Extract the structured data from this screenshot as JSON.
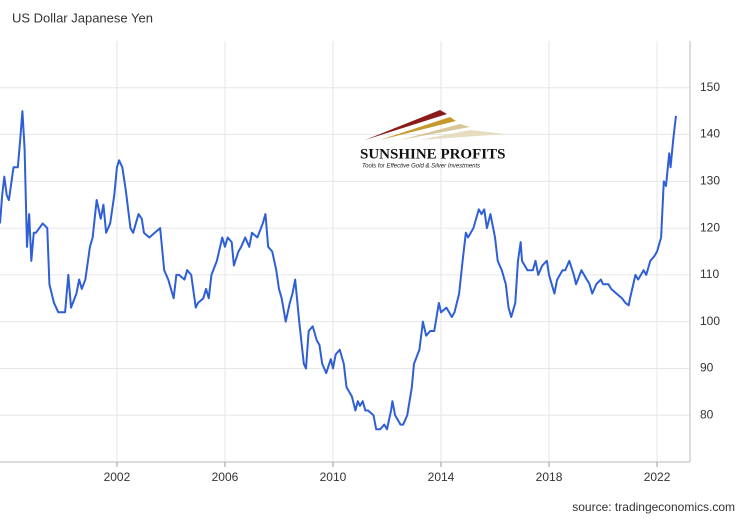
{
  "title": "US Dollar Japanese Yen",
  "logo": {
    "name": "SUNSHINE PROFITS",
    "tagline": "Tools for Effective Gold & Silver Investments"
  },
  "source": "source: tradingeconomics.com",
  "chart_data": {
    "type": "line",
    "x": [
      1997.67,
      1997.75,
      1997.83,
      1997.92,
      1998.0,
      1998.17,
      1998.33,
      1998.42,
      1998.5,
      1998.58,
      1998.67,
      1998.75,
      1998.83,
      1998.92,
      1999.0,
      1999.25,
      1999.42,
      1999.5,
      1999.67,
      1999.83,
      1999.92,
      2000.08,
      2000.2,
      2000.3,
      2000.5,
      2000.6,
      2000.7,
      2000.83,
      2001.0,
      2001.1,
      2001.25,
      2001.4,
      2001.5,
      2001.6,
      2001.75,
      2001.9,
      2002.0,
      2002.08,
      2002.2,
      2002.33,
      2002.5,
      2002.6,
      2002.7,
      2002.8,
      2002.92,
      2003.0,
      2003.2,
      2003.4,
      2003.6,
      2003.75,
      2003.9,
      2004.0,
      2004.1,
      2004.2,
      2004.3,
      2004.5,
      2004.6,
      2004.75,
      2004.92,
      2005.0,
      2005.2,
      2005.3,
      2005.4,
      2005.5,
      2005.7,
      2005.9,
      2006.0,
      2006.1,
      2006.25,
      2006.33,
      2006.5,
      2006.6,
      2006.75,
      2006.9,
      2007.0,
      2007.2,
      2007.4,
      2007.5,
      2007.6,
      2007.75,
      2007.9,
      2008.0,
      2008.1,
      2008.25,
      2008.4,
      2008.5,
      2008.6,
      2008.75,
      2008.92,
      2009.0,
      2009.1,
      2009.25,
      2009.4,
      2009.5,
      2009.6,
      2009.75,
      2009.92,
      2010.0,
      2010.1,
      2010.25,
      2010.4,
      2010.5,
      2010.7,
      2010.83,
      2010.92,
      2011.0,
      2011.1,
      2011.2,
      2011.3,
      2011.5,
      2011.6,
      2011.75,
      2011.9,
      2012.0,
      2012.15,
      2012.2,
      2012.3,
      2012.4,
      2012.5,
      2012.6,
      2012.75,
      2012.92,
      2013.0,
      2013.2,
      2013.33,
      2013.45,
      2013.6,
      2013.75,
      2013.92,
      2014.0,
      2014.2,
      2014.4,
      2014.5,
      2014.67,
      2014.8,
      2014.92,
      2015.0,
      2015.2,
      2015.4,
      2015.5,
      2015.6,
      2015.7,
      2015.83,
      2016.0,
      2016.1,
      2016.25,
      2016.4,
      2016.5,
      2016.6,
      2016.75,
      2016.85,
      2016.95,
      2017.0,
      2017.2,
      2017.4,
      2017.5,
      2017.6,
      2017.75,
      2017.92,
      2018.0,
      2018.2,
      2018.3,
      2018.5,
      2018.6,
      2018.75,
      2018.92,
      2019.0,
      2019.2,
      2019.4,
      2019.5,
      2019.6,
      2019.75,
      2019.92,
      2020.0,
      2020.2,
      2020.3,
      2020.5,
      2020.7,
      2020.83,
      2020.95,
      2021.0,
      2021.2,
      2021.3,
      2021.5,
      2021.6,
      2021.75,
      2021.9,
      2022.0,
      2022.15,
      2022.25,
      2022.33,
      2022.45,
      2022.5,
      2022.6,
      2022.7
    ],
    "series": [
      {
        "name": "USDJPY",
        "color": "#2f5fd6",
        "values": [
          121,
          127,
          131,
          127,
          126,
          133,
          133,
          139,
          145,
          137,
          116,
          123,
          113,
          119,
          119,
          121,
          120,
          108,
          104,
          102,
          102,
          102,
          110,
          103,
          106,
          109,
          107,
          109,
          116,
          118,
          126,
          122,
          125,
          119,
          121,
          127,
          133,
          134.5,
          133,
          128,
          120,
          119,
          121,
          123,
          122,
          119,
          118,
          119,
          120,
          111,
          109,
          107,
          105,
          110,
          110,
          109,
          111,
          110,
          103,
          104,
          105,
          107,
          105,
          110,
          113,
          118,
          116,
          118,
          117,
          112,
          115,
          116,
          118,
          116,
          119,
          118,
          121,
          123,
          116,
          115,
          111,
          107,
          105,
          100,
          104,
          106,
          109,
          100,
          91,
          90,
          98,
          99,
          96,
          95,
          91,
          89,
          92,
          90,
          93,
          94,
          91,
          86,
          84,
          81,
          83,
          82,
          83,
          81,
          81,
          80,
          77,
          77,
          78,
          77,
          81,
          83,
          80,
          79,
          78,
          78,
          80,
          86,
          91,
          94,
          100,
          97,
          98,
          98,
          104,
          102,
          103,
          101,
          102,
          106,
          113,
          119,
          118,
          120,
          124,
          123,
          124,
          120,
          123,
          118,
          113,
          111,
          108,
          103,
          101,
          104,
          113,
          117,
          113,
          111,
          111,
          113,
          110,
          112,
          113,
          110,
          106,
          109,
          111,
          111,
          113,
          110,
          108,
          111,
          109,
          108,
          106,
          108,
          109,
          108,
          108,
          107,
          106,
          105,
          104,
          103.5,
          105,
          110,
          109,
          111,
          110,
          113,
          114,
          115,
          118,
          130,
          129,
          136,
          133,
          139,
          144
        ]
      }
    ],
    "xlim": [
      1997.67,
      2023.22
    ],
    "xticks": [
      2002,
      2006,
      2010,
      2014,
      2018,
      2022
    ],
    "ylim": [
      70,
      160
    ],
    "yticks": [
      80,
      90,
      100,
      110,
      120,
      130,
      140,
      150
    ],
    "grid": true
  }
}
